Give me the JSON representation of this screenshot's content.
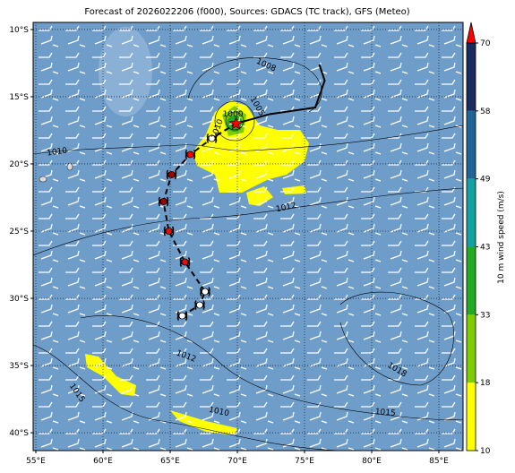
{
  "chart_data": {
    "type": "map",
    "title": "Forecast of 2026022206 (f000), Sources: GDACS (TC track), GFS (Meteo)",
    "xlim": [
      54.8,
      86.8
    ],
    "ylim": [
      -41.33,
      -9.47
    ],
    "xticks": [
      {
        "value": 55,
        "label": "55°E"
      },
      {
        "value": 60,
        "label": "60°E"
      },
      {
        "value": 65,
        "label": "65°E"
      },
      {
        "value": 70,
        "label": "70°E"
      },
      {
        "value": 75,
        "label": "75°E"
      },
      {
        "value": 80,
        "label": "80°E"
      },
      {
        "value": 85,
        "label": "85°E"
      }
    ],
    "yticks": [
      {
        "value": -10,
        "label": "10°S"
      },
      {
        "value": -15,
        "label": "15°S"
      },
      {
        "value": -20,
        "label": "20°S"
      },
      {
        "value": -25,
        "label": "25°S"
      },
      {
        "value": -30,
        "label": "30°S"
      },
      {
        "value": -35,
        "label": "35°S"
      },
      {
        "value": -40,
        "label": "40°S"
      }
    ],
    "grid": true,
    "colorbar": {
      "label": "10 m wind speed (m/s)",
      "ticks": [
        10,
        18,
        33,
        43,
        49,
        58,
        70
      ],
      "colors": [
        "#ffff00",
        "#7fcc00",
        "#22aa22",
        "#13a0a0",
        "#1f6496",
        "#1a2a5e"
      ],
      "extend_color": "#ff0000"
    },
    "contour_labels": [
      "1008",
      "1005",
      "1000",
      "1010",
      "1010",
      "1012",
      "1012",
      "1015",
      "1010",
      "1015",
      "1018"
    ],
    "track": {
      "lon": [
        65.9,
        67.2,
        67.6,
        66.1,
        64.9,
        64.5,
        65.1,
        66.5,
        68.1,
        69.9
      ],
      "lat": [
        -31.3,
        -30.5,
        -29.5,
        -27.3,
        -25.0,
        -22.8,
        -20.8,
        -19.3,
        -18.1,
        -17.0
      ],
      "colors": [
        "#ffffff",
        "#ffffff",
        "#ffffff",
        "#e01010",
        "#e01010",
        "#a00000",
        "#a00000",
        "#ff0000",
        "#ffffff",
        "#ff0000"
      ]
    },
    "forecast_track": {
      "lon": [
        69.9,
        72.4,
        75.8,
        76.5,
        76.1
      ],
      "lat": [
        -17.0,
        -16.3,
        -15.8,
        -13.8,
        -12.6
      ]
    }
  }
}
